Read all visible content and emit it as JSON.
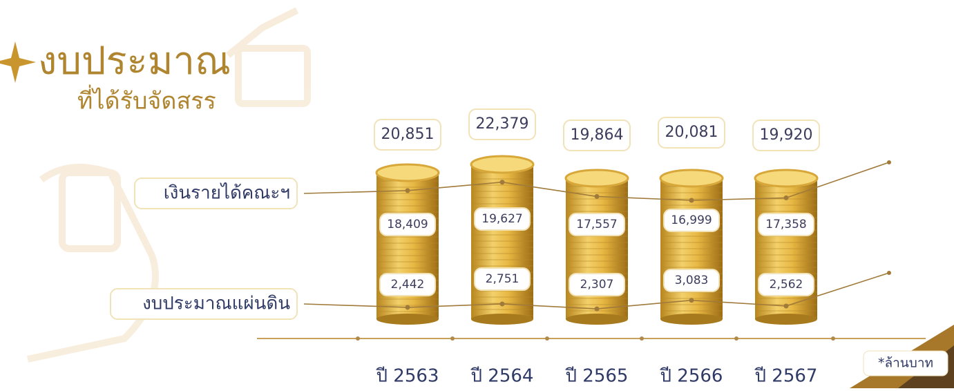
{
  "chart_data": {
    "type": "line",
    "title": "งบประมาณ",
    "subtitle": "ที่ได้รับจัดสรร",
    "note": "*ล้านบาท",
    "categories": [
      "ปี 2563",
      "ปี 2564",
      "ปี 2565",
      "ปี 2566",
      "ปี 2567"
    ],
    "totals": [
      20851,
      22379,
      19864,
      20081,
      19920
    ],
    "totals_labels": [
      "20,851",
      "22,379",
      "19,864",
      "20,081",
      "19,920"
    ],
    "series": [
      {
        "name": "เงินรายได้คณะฯ",
        "color": "#a07a3a",
        "values": [
          18409,
          19627,
          17557,
          16999,
          17358
        ],
        "value_labels": [
          "18,409",
          "19,627",
          "17,557",
          "16,999",
          "17,358"
        ]
      },
      {
        "name": "งบประมาณแผ่นดิน",
        "color": "#a07a3a",
        "values": [
          2442,
          2751,
          2307,
          3083,
          2562
        ],
        "value_labels": [
          "2,442",
          "2,751",
          "2,307",
          "3,083",
          "2,562"
        ]
      }
    ]
  }
}
